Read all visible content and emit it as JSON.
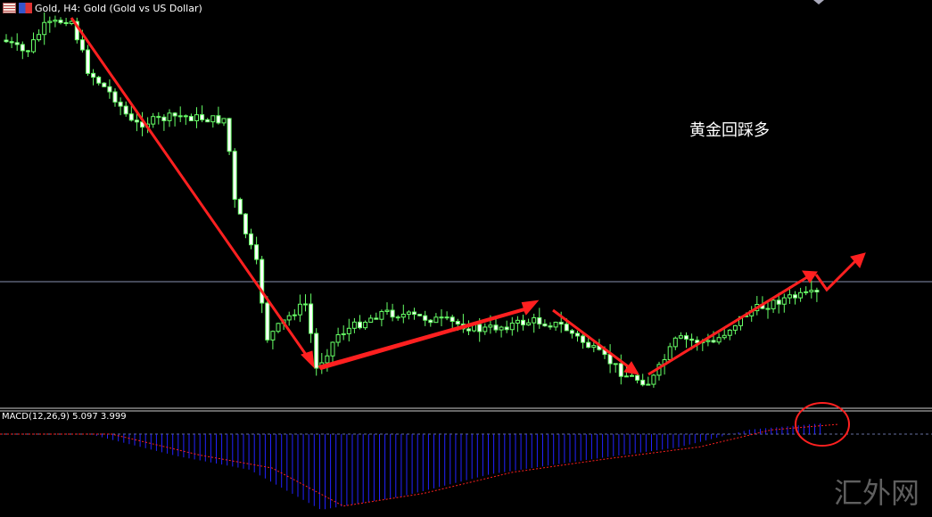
{
  "header": {
    "symbol_label": "Gold, H4:  Gold (Gold vs US Dollar)"
  },
  "indicator": {
    "label": "MACD(12,26,9) 5.097 3.999"
  },
  "annotation": {
    "text": "黄金回踩多"
  },
  "watermark": {
    "text": "汇外网"
  },
  "colors": {
    "background": "#000000",
    "candle": "#66ff66",
    "arrow": "#ff2020",
    "macd_histogram": "#2222ff",
    "signal_line": "#ff2020",
    "price_line": "#8890b0"
  }
}
